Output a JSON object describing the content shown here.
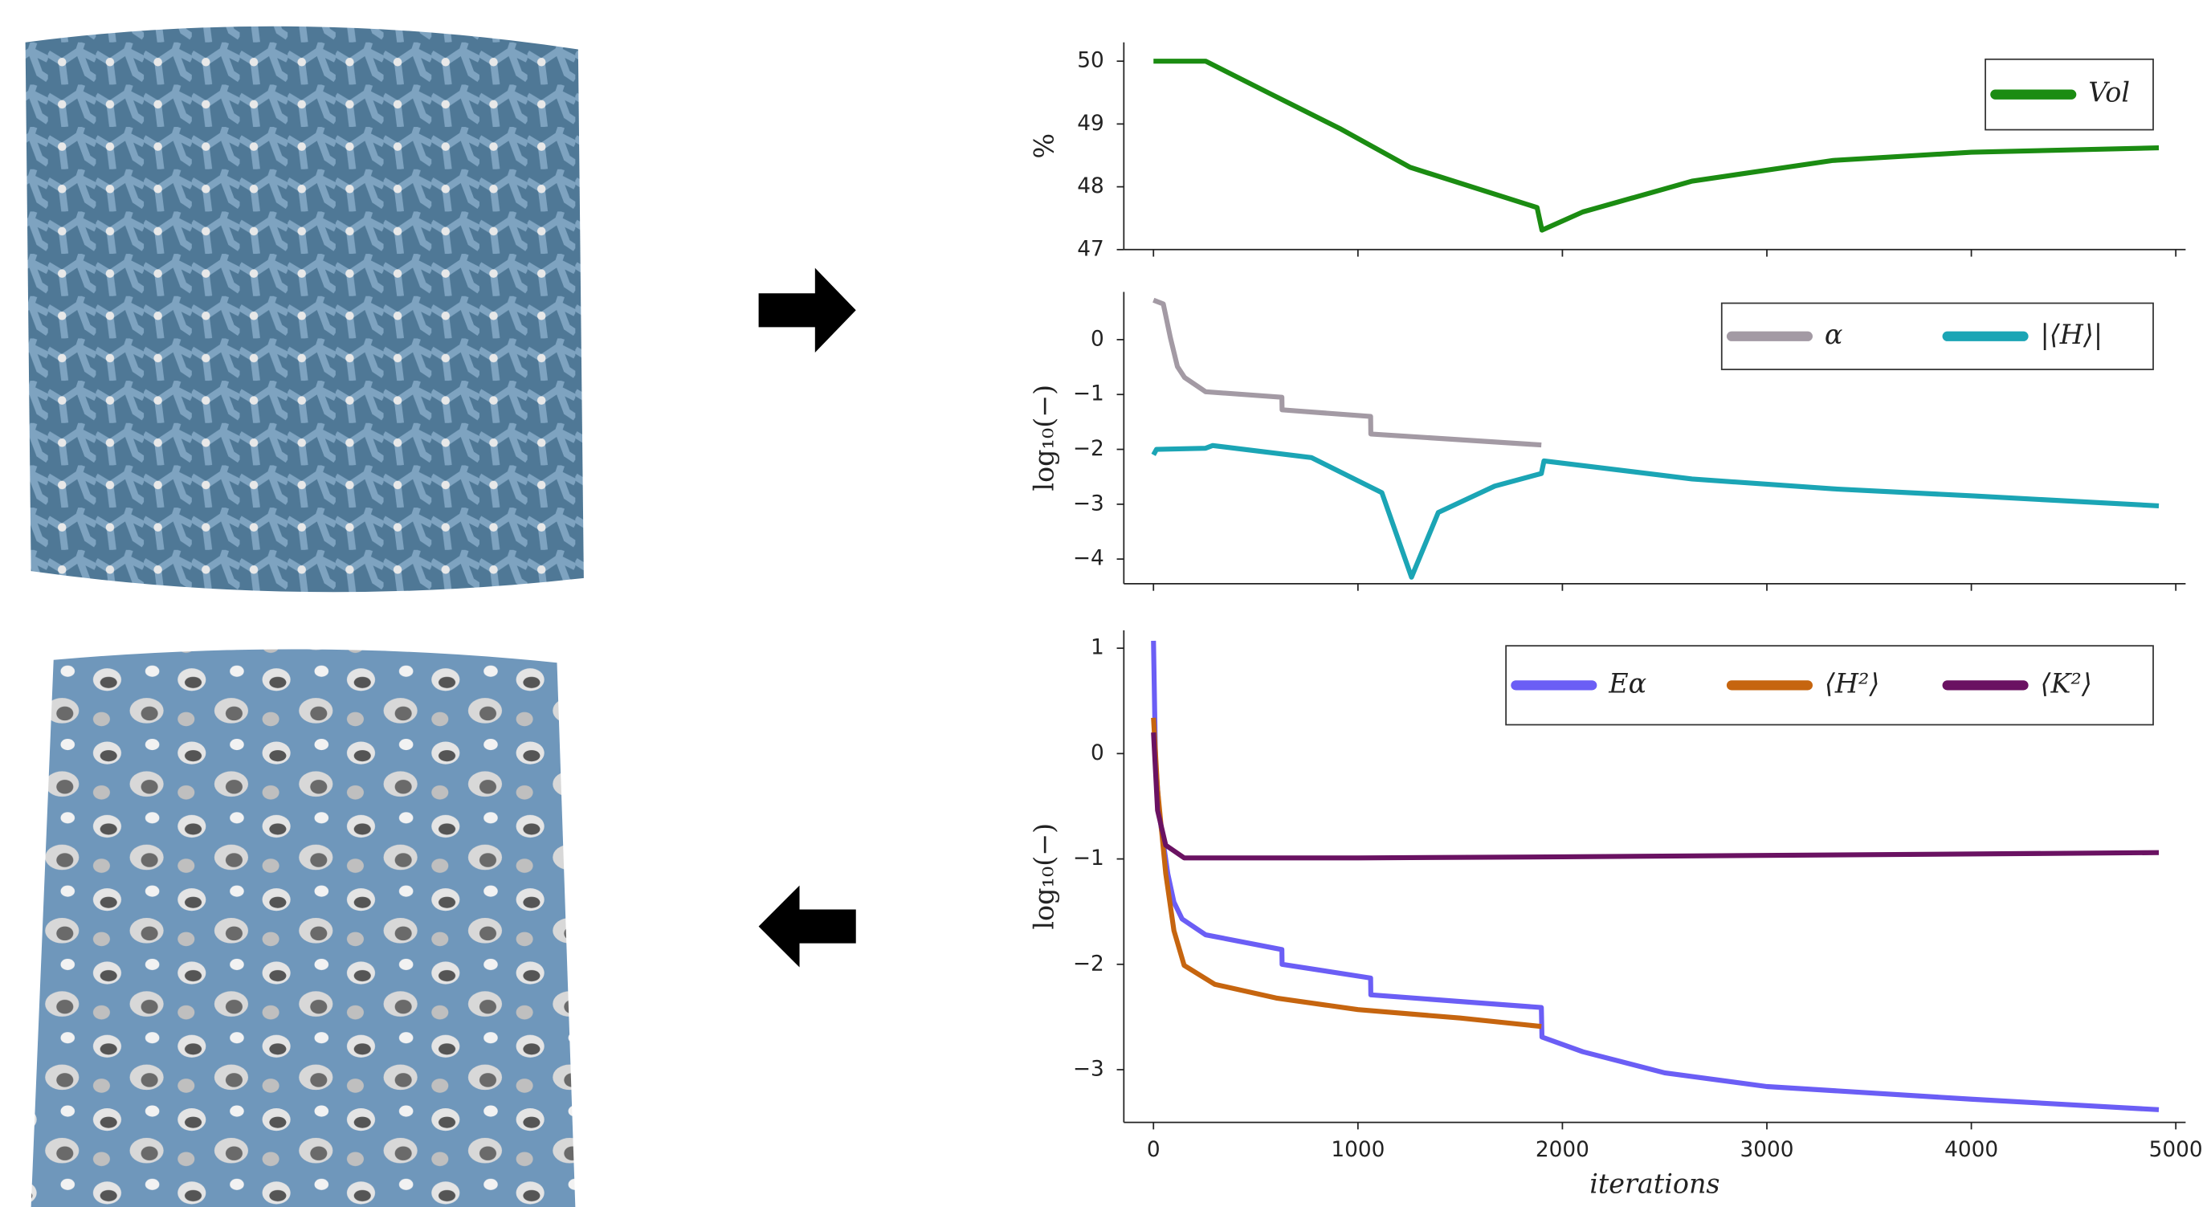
{
  "chart_data": [
    {
      "type": "line",
      "ylabel": "%",
      "xlim": [
        -145,
        5048
      ],
      "ylim": [
        47,
        50.3
      ],
      "xticks": [
        0,
        1000,
        2000,
        3000,
        4000,
        5000
      ],
      "yticks": [
        47,
        48,
        49,
        50
      ],
      "legend": "upper right",
      "series": [
        {
          "name": "Vol",
          "color": "#1b8c12",
          "x": [
            0,
            255,
            566,
            910,
            1255,
            1876,
            1900,
            2100,
            2634,
            3324,
            4000,
            4917
          ],
          "values": [
            50,
            50,
            49.49,
            48.93,
            48.31,
            47.67,
            47.31,
            47.6,
            48.09,
            48.42,
            48.55,
            48.62
          ]
        }
      ]
    },
    {
      "type": "line",
      "ylabel": "log₁₀(−)",
      "xlim": [
        -145,
        5048
      ],
      "ylim": [
        -4.45,
        0.87
      ],
      "xticks": [
        0,
        1000,
        2000,
        3000,
        4000,
        5000
      ],
      "yticks": [
        {
          "value": -4,
          "label": "−4"
        },
        {
          "value": -3,
          "label": "−3"
        },
        {
          "value": -2,
          "label": "−2"
        },
        {
          "value": -1,
          "label": "−1"
        },
        0
      ],
      "legend": "upper right",
      "series": [
        {
          "name": "α",
          "color": "#a39aa4",
          "x": [
            0,
            48,
            83,
            117,
            152,
            255,
            628,
            629,
            1062,
            1063,
            1897
          ],
          "values": [
            0.72,
            0.65,
            0.03,
            -0.49,
            -0.69,
            -0.95,
            -1.05,
            -1.28,
            -1.4,
            -1.72,
            -1.92
          ]
        },
        {
          "name": "|⟨H⟩|",
          "color": "#1ba5b5",
          "x": [
            0,
            15,
            255,
            290,
            772,
            1117,
            1262,
            1393,
            1669,
            1897,
            1910,
            2634,
            3324,
            4014,
            4917
          ],
          "values": [
            -2.1,
            -2.0,
            -1.98,
            -1.93,
            -2.15,
            -2.79,
            -4.33,
            -3.15,
            -2.67,
            -2.44,
            -2.21,
            -2.54,
            -2.72,
            -2.85,
            -3.03
          ]
        }
      ]
    },
    {
      "type": "line",
      "ylabel": "log₁₀(−)",
      "xlabel": "iterations",
      "xlim": [
        -145,
        5048
      ],
      "ylim": [
        -3.5,
        1.17
      ],
      "xticks": [
        0,
        1000,
        2000,
        3000,
        4000,
        5000
      ],
      "yticks": [
        {
          "value": -3,
          "label": "−3"
        },
        {
          "value": -2,
          "label": "−2"
        },
        {
          "value": -1,
          "label": "−1"
        },
        0,
        1
      ],
      "legend": "upper right",
      "series": [
        {
          "name": "Eα",
          "color": "#6b5ef5",
          "x": [
            0,
            10,
            30,
            70,
            100,
            140,
            255,
            628,
            629,
            1062,
            1063,
            1897,
            1900,
            2100,
            2500,
            3000,
            4000,
            4917
          ],
          "values": [
            1.07,
            -0.07,
            -0.6,
            -1.14,
            -1.41,
            -1.57,
            -1.72,
            -1.86,
            -2.0,
            -2.13,
            -2.29,
            -2.41,
            -2.69,
            -2.83,
            -3.03,
            -3.16,
            -3.28,
            -3.38
          ]
        },
        {
          "name": "⟨H²⟩",
          "color": "#c6650f",
          "x": [
            0,
            20,
            60,
            100,
            150,
            300,
            600,
            1000,
            1500,
            1897
          ],
          "values": [
            0.34,
            -0.34,
            -1.14,
            -1.68,
            -2.01,
            -2.19,
            -2.32,
            -2.43,
            -2.51,
            -2.59
          ]
        },
        {
          "name": "⟨K²⟩",
          "color": "#6a1262",
          "x": [
            0,
            20,
            60,
            150,
            1000,
            2000,
            4917
          ],
          "values": [
            0.2,
            -0.54,
            -0.87,
            -0.99,
            -0.99,
            -0.98,
            -0.94
          ]
        }
      ]
    }
  ]
}
